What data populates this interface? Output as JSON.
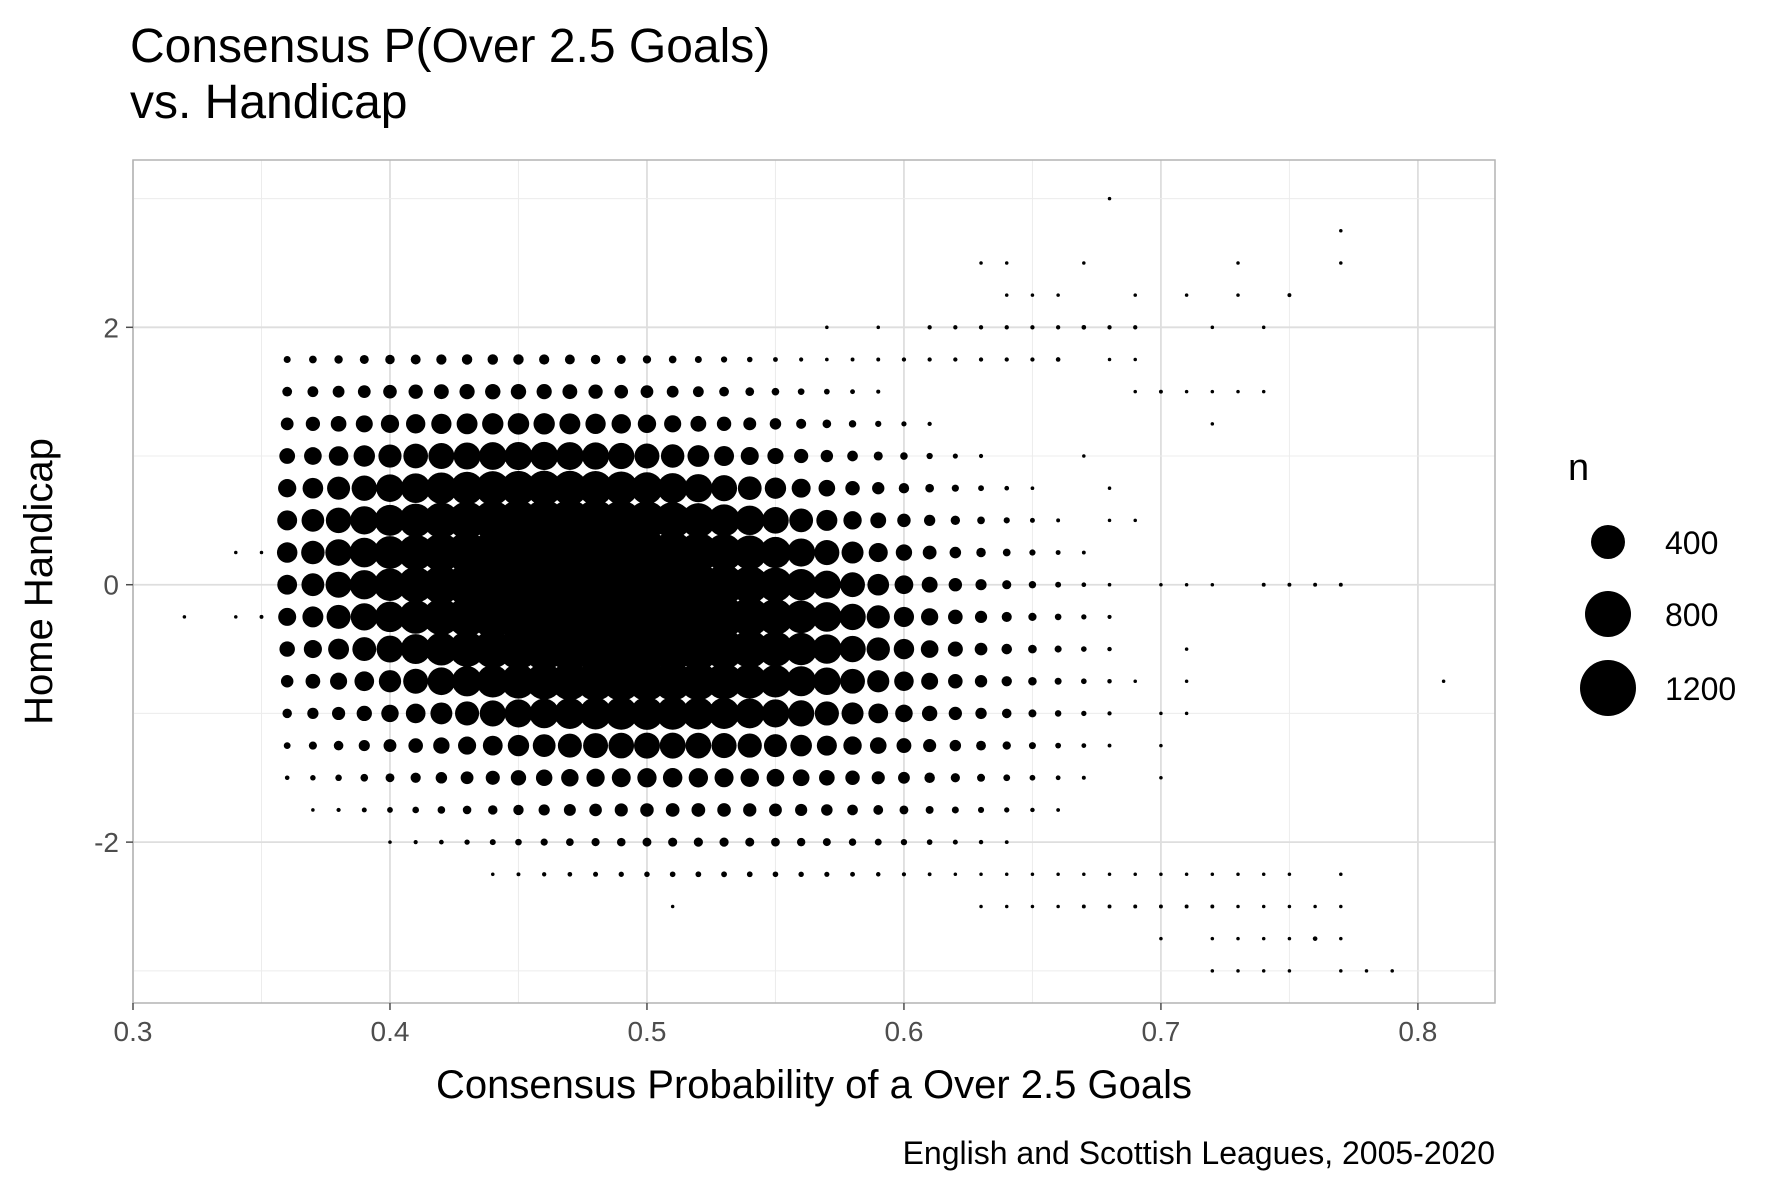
{
  "chart_data": {
    "type": "scatter",
    "title_line1": "Consensus P(Over 2.5 Goals)",
    "title_line2": "vs. Handicap",
    "xlabel": "Consensus Probability of a Over 2.5 Goals",
    "ylabel": "Home Handicap",
    "caption": "English and Scottish Leagues, 2005-2020",
    "xlim": [
      0.3,
      0.83
    ],
    "ylim": [
      -3.25,
      3.3
    ],
    "x_ticks": [
      0.3,
      0.4,
      0.5,
      0.6,
      0.7,
      0.8
    ],
    "x_tick_labels": [
      "0.3",
      "0.4",
      "0.5",
      "0.6",
      "0.7",
      "0.8"
    ],
    "y_ticks": [
      -2,
      0,
      2
    ],
    "y_tick_labels": [
      "-2",
      "0",
      "2"
    ],
    "grid": true,
    "size_variable": "n",
    "legend": {
      "title": "n",
      "position": "right",
      "entries": [
        {
          "label": "400",
          "value": 400
        },
        {
          "label": "800",
          "value": 800
        },
        {
          "label": "1200",
          "value": 1200
        }
      ]
    },
    "points": [
      [
        0.32,
        -0.25,
        8
      ],
      [
        0.81,
        -0.75,
        8
      ],
      [
        0.68,
        3.0,
        8
      ],
      [
        0.77,
        2.75,
        8
      ],
      [
        0.77,
        2.5,
        8
      ],
      [
        0.73,
        2.5,
        8
      ],
      [
        0.63,
        2.5,
        8
      ],
      [
        0.64,
        2.5,
        8
      ],
      [
        0.67,
        2.5,
        8
      ],
      [
        0.75,
        2.25,
        10
      ],
      [
        0.73,
        2.25,
        8
      ],
      [
        0.69,
        2.25,
        8
      ],
      [
        0.71,
        2.25,
        8
      ],
      [
        0.64,
        2.25,
        8
      ],
      [
        0.65,
        2.25,
        8
      ],
      [
        0.66,
        2.25,
        8
      ],
      [
        0.57,
        2.0,
        8
      ],
      [
        0.59,
        2.0,
        8
      ],
      [
        0.61,
        2.0,
        12
      ],
      [
        0.62,
        2.0,
        12
      ],
      [
        0.63,
        2.0,
        12
      ],
      [
        0.64,
        2.0,
        12
      ],
      [
        0.65,
        2.0,
        12
      ],
      [
        0.66,
        2.0,
        12
      ],
      [
        0.67,
        2.0,
        14
      ],
      [
        0.68,
        2.0,
        12
      ],
      [
        0.69,
        2.0,
        12
      ],
      [
        0.72,
        2.0,
        8
      ],
      [
        0.74,
        2.0,
        8
      ],
      [
        0.47,
        1.75,
        8
      ],
      [
        0.5,
        1.75,
        8
      ],
      [
        0.52,
        1.75,
        8
      ],
      [
        0.53,
        1.75,
        8
      ],
      [
        0.54,
        1.75,
        8
      ],
      [
        0.57,
        1.75,
        8
      ],
      [
        0.58,
        1.75,
        10
      ],
      [
        0.59,
        1.75,
        10
      ],
      [
        0.6,
        1.75,
        12
      ],
      [
        0.61,
        1.75,
        12
      ],
      [
        0.62,
        1.75,
        12
      ],
      [
        0.63,
        1.75,
        12
      ],
      [
        0.64,
        1.75,
        12
      ],
      [
        0.65,
        1.75,
        12
      ],
      [
        0.66,
        1.75,
        14
      ],
      [
        0.68,
        1.75,
        8
      ],
      [
        0.69,
        1.75,
        8
      ],
      [
        0.46,
        1.5,
        8
      ],
      [
        0.48,
        1.5,
        8
      ],
      [
        0.69,
        1.5,
        8
      ],
      [
        0.7,
        1.5,
        10
      ],
      [
        0.71,
        1.5,
        8
      ],
      [
        0.72,
        1.5,
        8
      ],
      [
        0.73,
        1.5,
        8
      ],
      [
        0.74,
        1.5,
        8
      ],
      [
        0.72,
        1.25,
        8
      ],
      [
        0.39,
        1.0,
        8
      ],
      [
        0.41,
        1.0,
        8
      ],
      [
        0.42,
        1.0,
        8
      ],
      [
        0.67,
        1.0,
        8
      ],
      [
        0.4,
        0.75,
        8
      ],
      [
        0.68,
        0.75,
        8
      ],
      [
        0.68,
        0.5,
        8
      ],
      [
        0.69,
        0.5,
        8
      ],
      [
        0.34,
        0.25,
        8
      ],
      [
        0.35,
        0.25,
        8
      ],
      [
        0.36,
        0.25,
        8
      ],
      [
        0.37,
        0.25,
        8
      ],
      [
        0.38,
        0.25,
        10
      ],
      [
        0.7,
        0.0,
        8
      ],
      [
        0.71,
        0.0,
        8
      ],
      [
        0.72,
        0.0,
        8
      ],
      [
        0.74,
        0.0,
        10
      ],
      [
        0.75,
        0.0,
        10
      ],
      [
        0.76,
        0.0,
        10
      ],
      [
        0.77,
        0.0,
        10
      ],
      [
        0.34,
        -0.25,
        8
      ],
      [
        0.35,
        -0.25,
        10
      ],
      [
        0.36,
        -0.25,
        12
      ],
      [
        0.37,
        -0.25,
        14
      ],
      [
        0.36,
        -0.5,
        8
      ],
      [
        0.38,
        -0.75,
        8
      ],
      [
        0.71,
        -0.5,
        8
      ],
      [
        0.68,
        -0.75,
        8
      ],
      [
        0.71,
        -0.75,
        8
      ],
      [
        0.38,
        -1.0,
        8
      ],
      [
        0.39,
        -1.0,
        10
      ],
      [
        0.7,
        -1.0,
        8
      ],
      [
        0.71,
        -1.0,
        8
      ],
      [
        0.7,
        -1.25,
        8
      ],
      [
        0.7,
        -1.5,
        8
      ],
      [
        0.43,
        -1.5,
        8
      ],
      [
        0.45,
        -1.75,
        8
      ],
      [
        0.47,
        -1.75,
        8
      ],
      [
        0.41,
        -2.0,
        8
      ],
      [
        0.42,
        -2.0,
        8
      ],
      [
        0.47,
        -2.0,
        8
      ],
      [
        0.49,
        -2.0,
        8
      ],
      [
        0.5,
        -2.0,
        8
      ],
      [
        0.51,
        -2.0,
        8
      ],
      [
        0.53,
        -2.0,
        8
      ],
      [
        0.51,
        -2.5,
        8
      ],
      [
        0.6,
        -2.25,
        8
      ],
      [
        0.61,
        -2.25,
        8
      ],
      [
        0.62,
        -2.25,
        8
      ],
      [
        0.63,
        -2.25,
        8
      ],
      [
        0.64,
        -2.25,
        8
      ],
      [
        0.65,
        -2.25,
        8
      ],
      [
        0.66,
        -2.25,
        8
      ],
      [
        0.67,
        -2.25,
        8
      ],
      [
        0.68,
        -2.25,
        8
      ],
      [
        0.69,
        -2.25,
        8
      ],
      [
        0.7,
        -2.25,
        8
      ],
      [
        0.71,
        -2.25,
        8
      ],
      [
        0.72,
        -2.25,
        8
      ],
      [
        0.73,
        -2.25,
        8
      ],
      [
        0.74,
        -2.25,
        8
      ],
      [
        0.75,
        -2.25,
        8
      ],
      [
        0.77,
        -2.25,
        8
      ],
      [
        0.63,
        -2.5,
        8
      ],
      [
        0.64,
        -2.5,
        8
      ],
      [
        0.65,
        -2.5,
        8
      ],
      [
        0.66,
        -2.5,
        8
      ],
      [
        0.67,
        -2.5,
        10
      ],
      [
        0.68,
        -2.5,
        10
      ],
      [
        0.69,
        -2.5,
        10
      ],
      [
        0.7,
        -2.5,
        10
      ],
      [
        0.71,
        -2.5,
        10
      ],
      [
        0.72,
        -2.5,
        10
      ],
      [
        0.73,
        -2.5,
        8
      ],
      [
        0.74,
        -2.5,
        8
      ],
      [
        0.75,
        -2.5,
        8
      ],
      [
        0.76,
        -2.5,
        8
      ],
      [
        0.77,
        -2.5,
        8
      ],
      [
        0.7,
        -2.75,
        8
      ],
      [
        0.72,
        -2.75,
        8
      ],
      [
        0.73,
        -2.75,
        8
      ],
      [
        0.74,
        -2.75,
        8
      ],
      [
        0.75,
        -2.75,
        8
      ],
      [
        0.76,
        -2.75,
        14
      ],
      [
        0.77,
        -2.75,
        8
      ],
      [
        0.72,
        -3.0,
        8
      ],
      [
        0.73,
        -3.0,
        8
      ],
      [
        0.74,
        -3.0,
        8
      ],
      [
        0.75,
        -3.0,
        8
      ],
      [
        0.77,
        -3.0,
        8
      ],
      [
        0.78,
        -3.0,
        8
      ],
      [
        0.79,
        -3.0,
        8
      ]
    ]
  }
}
